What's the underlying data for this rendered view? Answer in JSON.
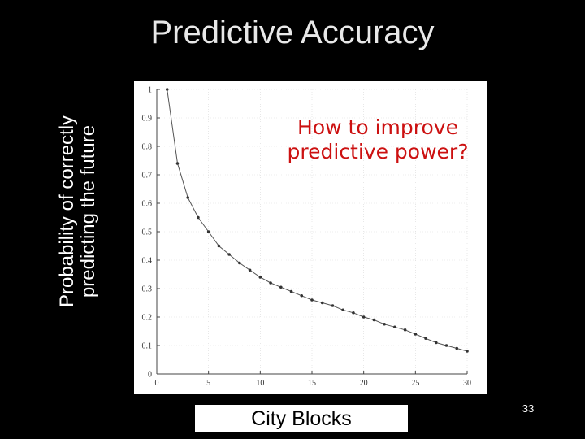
{
  "slide": {
    "title": "Predictive Accuracy",
    "callout": "How to improve predictive power?",
    "page_number": "33"
  },
  "chart_data": {
    "type": "line",
    "title": "Predictive Accuracy",
    "xlabel": "City Blocks",
    "ylabel": "Probability of correctly predicting the future",
    "xlim": [
      0,
      30
    ],
    "ylim": [
      0,
      1
    ],
    "xticks": [
      0,
      5,
      10,
      15,
      20,
      25,
      30
    ],
    "yticks": [
      0,
      0.1,
      0.2,
      0.3,
      0.4,
      0.5,
      0.6,
      0.7,
      0.8,
      0.9,
      1
    ],
    "grid": true,
    "series": [
      {
        "x": [
          1,
          2,
          3,
          4,
          5,
          6,
          7,
          8,
          9,
          10,
          11,
          12,
          13,
          14,
          15,
          16,
          17,
          18,
          19,
          20,
          21,
          22,
          23,
          24,
          25,
          26,
          27,
          28,
          29,
          30
        ],
        "values": [
          1.0,
          0.74,
          0.62,
          0.55,
          0.5,
          0.45,
          0.42,
          0.39,
          0.365,
          0.34,
          0.32,
          0.305,
          0.29,
          0.275,
          0.26,
          0.25,
          0.24,
          0.225,
          0.215,
          0.2,
          0.19,
          0.175,
          0.165,
          0.155,
          0.14,
          0.125,
          0.11,
          0.1,
          0.09,
          0.08
        ]
      }
    ],
    "colors": {
      "line": "#555555",
      "marker": "#333333",
      "grid": "#d9d9d9",
      "callout": "#cc1111"
    }
  }
}
